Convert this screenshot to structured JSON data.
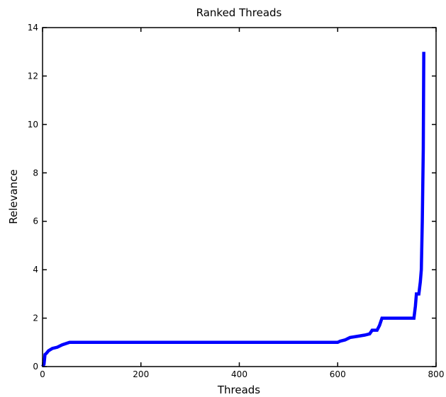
{
  "chart_data": {
    "type": "line",
    "title": "Ranked Threads",
    "xlabel": "Threads",
    "ylabel": "Relevance",
    "xlim": [
      0,
      800
    ],
    "ylim": [
      0,
      14
    ],
    "xticks": [
      0,
      200,
      400,
      600,
      800
    ],
    "yticks": [
      0,
      2,
      4,
      6,
      8,
      10,
      12,
      14
    ],
    "xtick_labels": [
      "0",
      "200",
      "400",
      "600",
      "800"
    ],
    "ytick_labels": [
      "0",
      "2",
      "4",
      "6",
      "8",
      "10",
      "12",
      "14"
    ],
    "grid": false,
    "legend": "none",
    "line_color": "#0000ff",
    "series": [
      {
        "x": [
          0,
          3,
          5,
          8,
          12,
          20,
          30,
          40,
          55,
          100,
          200,
          300,
          400,
          500,
          600,
          605,
          615,
          625,
          640,
          655,
          665,
          670,
          680,
          685,
          690,
          700,
          720,
          740,
          755,
          758,
          760,
          765,
          768,
          770,
          772,
          774,
          775
        ],
        "y": [
          0,
          0.1,
          0.5,
          0.55,
          0.65,
          0.75,
          0.8,
          0.9,
          1.0,
          1.0,
          1.0,
          1.0,
          1.0,
          1.0,
          1.0,
          1.05,
          1.1,
          1.2,
          1.25,
          1.3,
          1.35,
          1.5,
          1.5,
          1.7,
          2.0,
          2.0,
          2.0,
          2.0,
          2.0,
          2.5,
          3.0,
          3.0,
          3.5,
          4.0,
          6.0,
          9.0,
          13.0
        ]
      }
    ]
  }
}
